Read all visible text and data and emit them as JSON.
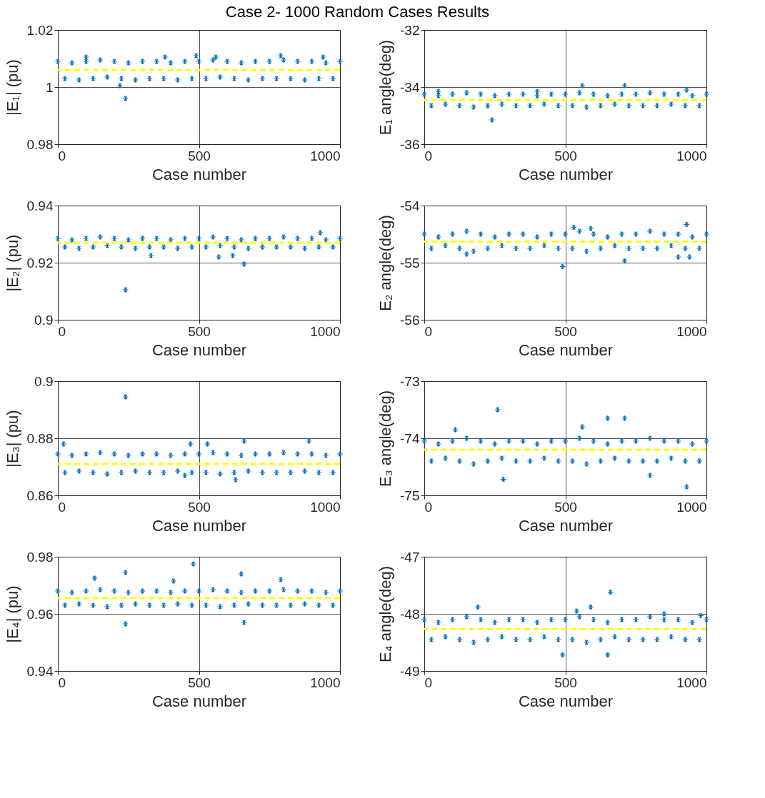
{
  "chart_data": [
    {
      "type": "scatter",
      "title": "Case 2- 1000 Random Cases Results",
      "xlabel": "Case number",
      "ylabel": "|E₁|  (pu)",
      "xlim": [
        0,
        1000
      ],
      "xticks": [
        0,
        500,
        1000
      ],
      "ylim": [
        0.98,
        1.02
      ],
      "yticks": [
        0.98,
        1,
        1.02
      ],
      "grid": true,
      "marker": "cross",
      "x": [
        0,
        25,
        50,
        75,
        100,
        125,
        150,
        175,
        200,
        225,
        250,
        275,
        300,
        325,
        350,
        375,
        400,
        425,
        450,
        475,
        500,
        525,
        550,
        575,
        600,
        625,
        650,
        675,
        700,
        725,
        750,
        775,
        800,
        825,
        850,
        875,
        900,
        925,
        950,
        975,
        1000,
        240,
        220,
        790,
        100,
        380,
        490,
        560,
        940
      ],
      "series": [
        {
          "color": "#0072bd",
          "values": [
            1.009,
            1.003,
            1.0085,
            1.0025,
            1.009,
            1.003,
            1.0095,
            1.0035,
            1.009,
            1.003,
            1.0085,
            1.0025,
            1.009,
            1.003,
            1.009,
            1.003,
            1.0085,
            1.0025,
            1.009,
            1.003,
            1.009,
            1.003,
            1.0095,
            1.0035,
            1.009,
            1.003,
            1.0085,
            1.0025,
            1.009,
            1.003,
            1.009,
            1.003,
            1.0095,
            1.003,
            1.009,
            1.0025,
            1.009,
            1.003,
            1.0085,
            1.003,
            1.009,
            0.996,
            1.0005,
            1.011,
            1.0105,
            1.0105,
            1.011,
            1.0105,
            1.0105
          ]
        }
      ],
      "ref_lines": [
        {
          "axis": "y",
          "value": 1.006,
          "color": "#ffff00",
          "line_style": "dashed"
        }
      ]
    },
    {
      "type": "scatter",
      "xlabel": "Case number",
      "ylabel": "E₁ angle(deg)",
      "xlim": [
        0,
        1000
      ],
      "xticks": [
        0,
        500,
        1000
      ],
      "ylim": [
        -36,
        -32
      ],
      "yticks": [
        -36,
        -34,
        -32
      ],
      "grid": true,
      "marker": "cross",
      "x": [
        0,
        25,
        50,
        75,
        100,
        125,
        150,
        175,
        200,
        225,
        250,
        275,
        300,
        325,
        350,
        375,
        400,
        425,
        450,
        475,
        500,
        525,
        550,
        575,
        600,
        625,
        650,
        675,
        700,
        725,
        750,
        775,
        800,
        825,
        850,
        875,
        900,
        925,
        950,
        975,
        1000,
        240,
        560,
        710,
        930,
        400,
        50
      ],
      "series": [
        {
          "color": "#0072bd",
          "values": [
            -34.25,
            -34.65,
            -34.3,
            -34.6,
            -34.25,
            -34.65,
            -34.2,
            -34.7,
            -34.25,
            -34.65,
            -34.3,
            -34.6,
            -34.25,
            -34.65,
            -34.25,
            -34.65,
            -34.3,
            -34.6,
            -34.25,
            -34.65,
            -34.25,
            -34.65,
            -34.2,
            -34.7,
            -34.25,
            -34.65,
            -34.3,
            -34.6,
            -34.25,
            -34.65,
            -34.25,
            -34.65,
            -34.2,
            -34.65,
            -34.25,
            -34.6,
            -34.25,
            -34.65,
            -34.3,
            -34.65,
            -34.25,
            -35.15,
            -33.95,
            -33.95,
            -34.1,
            -34.15,
            -34.15
          ]
        }
      ],
      "ref_lines": [
        {
          "axis": "y",
          "value": -34.45,
          "color": "#ffff00",
          "line_style": "dashed"
        }
      ]
    },
    {
      "type": "scatter",
      "xlabel": "Case number",
      "ylabel": "|E₂|  (pu)",
      "xlim": [
        0,
        1000
      ],
      "xticks": [
        0,
        500,
        1000
      ],
      "ylim": [
        0.9,
        0.94
      ],
      "yticks": [
        0.9,
        0.92,
        0.94
      ],
      "grid": true,
      "marker": "cross",
      "x": [
        0,
        25,
        50,
        75,
        100,
        125,
        150,
        175,
        200,
        225,
        250,
        275,
        300,
        325,
        350,
        375,
        400,
        425,
        450,
        475,
        500,
        525,
        550,
        575,
        600,
        625,
        650,
        675,
        700,
        725,
        750,
        775,
        800,
        825,
        850,
        875,
        900,
        925,
        950,
        975,
        1000,
        240,
        660,
        570,
        930,
        330,
        620
      ],
      "series": [
        {
          "color": "#0072bd",
          "values": [
            0.9285,
            0.9255,
            0.928,
            0.925,
            0.9285,
            0.9255,
            0.929,
            0.926,
            0.9285,
            0.9255,
            0.928,
            0.925,
            0.9285,
            0.9255,
            0.9285,
            0.9255,
            0.928,
            0.925,
            0.9285,
            0.9255,
            0.9285,
            0.9255,
            0.929,
            0.926,
            0.9285,
            0.9255,
            0.928,
            0.925,
            0.9285,
            0.9255,
            0.9285,
            0.9255,
            0.929,
            0.9255,
            0.9285,
            0.925,
            0.9285,
            0.9255,
            0.928,
            0.9255,
            0.9285,
            0.9105,
            0.9195,
            0.922,
            0.9305,
            0.9225,
            0.9225
          ]
        }
      ],
      "ref_lines": [
        {
          "axis": "y",
          "value": 0.927,
          "color": "#ffff00",
          "line_style": "dashed"
        }
      ]
    },
    {
      "type": "scatter",
      "xlabel": "Case number",
      "ylabel": "E₂ angle(deg)",
      "xlim": [
        0,
        1000
      ],
      "xticks": [
        0,
        500,
        1000
      ],
      "ylim": [
        -56,
        -54
      ],
      "yticks": [
        -56,
        -55,
        -54
      ],
      "grid": true,
      "marker": "cross",
      "x": [
        0,
        25,
        50,
        75,
        100,
        125,
        150,
        175,
        200,
        225,
        250,
        275,
        300,
        325,
        350,
        375,
        400,
        425,
        450,
        475,
        500,
        525,
        550,
        575,
        600,
        625,
        650,
        675,
        700,
        725,
        750,
        775,
        800,
        825,
        850,
        875,
        900,
        925,
        950,
        975,
        1000,
        490,
        530,
        590,
        710,
        930,
        900,
        940,
        150
      ],
      "series": [
        {
          "color": "#0072bd",
          "values": [
            -54.5,
            -54.75,
            -54.55,
            -54.7,
            -54.5,
            -54.75,
            -54.45,
            -54.8,
            -54.5,
            -54.75,
            -54.55,
            -54.7,
            -54.5,
            -54.75,
            -54.5,
            -54.75,
            -54.55,
            -54.7,
            -54.5,
            -54.75,
            -54.5,
            -54.75,
            -54.45,
            -54.8,
            -54.5,
            -54.75,
            -54.55,
            -54.7,
            -54.5,
            -54.75,
            -54.5,
            -54.75,
            -54.45,
            -54.75,
            -54.5,
            -54.7,
            -54.5,
            -54.75,
            -54.55,
            -54.75,
            -54.5,
            -55.07,
            -54.38,
            -54.4,
            -54.97,
            -54.33,
            -54.9,
            -54.9,
            -54.85
          ]
        }
      ],
      "ref_lines": [
        {
          "axis": "y",
          "value": -54.63,
          "color": "#ffff00",
          "line_style": "dashed"
        }
      ]
    },
    {
      "type": "scatter",
      "xlabel": "Case number",
      "ylabel": "|E₃|  (pu)",
      "xlim": [
        0,
        1000
      ],
      "xticks": [
        0,
        500,
        1000
      ],
      "ylim": [
        0.86,
        0.9
      ],
      "yticks": [
        0.86,
        0.88,
        0.9
      ],
      "grid": true,
      "marker": "cross",
      "x": [
        0,
        25,
        50,
        75,
        100,
        125,
        150,
        175,
        200,
        225,
        250,
        275,
        300,
        325,
        350,
        375,
        400,
        425,
        450,
        475,
        500,
        525,
        550,
        575,
        600,
        625,
        650,
        675,
        700,
        725,
        750,
        775,
        800,
        825,
        850,
        875,
        900,
        925,
        950,
        975,
        1000,
        240,
        630,
        450,
        660,
        890,
        20,
        470,
        530
      ],
      "series": [
        {
          "color": "#0072bd",
          "values": [
            0.8745,
            0.868,
            0.874,
            0.8685,
            0.8745,
            0.868,
            0.875,
            0.8675,
            0.8745,
            0.868,
            0.874,
            0.8685,
            0.8745,
            0.868,
            0.8745,
            0.868,
            0.874,
            0.8685,
            0.8745,
            0.868,
            0.8745,
            0.868,
            0.875,
            0.8675,
            0.8745,
            0.868,
            0.874,
            0.8685,
            0.8745,
            0.868,
            0.8745,
            0.868,
            0.875,
            0.868,
            0.8745,
            0.8685,
            0.8745,
            0.868,
            0.874,
            0.868,
            0.8745,
            0.8945,
            0.8655,
            0.867,
            0.879,
            0.879,
            0.878,
            0.878,
            0.878
          ]
        }
      ],
      "ref_lines": [
        {
          "axis": "y",
          "value": 0.871,
          "color": "#ffff00",
          "line_style": "dashed"
        }
      ]
    },
    {
      "type": "scatter",
      "xlabel": "Case number",
      "ylabel": "E₃ angle(deg)",
      "xlim": [
        0,
        1000
      ],
      "xticks": [
        0,
        500,
        1000
      ],
      "ylim": [
        -75,
        -73
      ],
      "yticks": [
        -75,
        -74,
        -73
      ],
      "grid": true,
      "marker": "cross",
      "x": [
        0,
        25,
        50,
        75,
        100,
        125,
        150,
        175,
        200,
        225,
        250,
        275,
        300,
        325,
        350,
        375,
        400,
        425,
        450,
        475,
        500,
        525,
        550,
        575,
        600,
        625,
        650,
        675,
        700,
        725,
        750,
        775,
        800,
        825,
        850,
        875,
        900,
        925,
        950,
        975,
        1000,
        260,
        280,
        650,
        710,
        560,
        930,
        800,
        110
      ],
      "series": [
        {
          "color": "#0072bd",
          "values": [
            -74.05,
            -74.4,
            -74.1,
            -74.35,
            -74.05,
            -74.4,
            -74.0,
            -74.45,
            -74.05,
            -74.4,
            -74.1,
            -74.35,
            -74.05,
            -74.4,
            -74.05,
            -74.4,
            -74.1,
            -74.35,
            -74.05,
            -74.4,
            -74.05,
            -74.4,
            -74.0,
            -74.45,
            -74.05,
            -74.4,
            -74.1,
            -74.35,
            -74.05,
            -74.4,
            -74.05,
            -74.4,
            -74.0,
            -74.4,
            -74.05,
            -74.35,
            -74.05,
            -74.4,
            -74.1,
            -74.4,
            -74.05,
            -73.5,
            -74.72,
            -73.65,
            -73.65,
            -73.8,
            -74.85,
            -74.65,
            -73.85
          ]
        }
      ],
      "ref_lines": [
        {
          "axis": "y",
          "value": -74.2,
          "color": "#ffff00",
          "line_style": "dashed"
        }
      ]
    },
    {
      "type": "scatter",
      "xlabel": "Case number",
      "ylabel": "|E₄|  (pu)",
      "xlim": [
        0,
        1000
      ],
      "xticks": [
        0,
        500,
        1000
      ],
      "ylim": [
        0.94,
        0.98
      ],
      "yticks": [
        0.94,
        0.96,
        0.98
      ],
      "grid": true,
      "marker": "cross",
      "x": [
        0,
        25,
        50,
        75,
        100,
        125,
        150,
        175,
        200,
        225,
        250,
        275,
        300,
        325,
        350,
        375,
        400,
        425,
        450,
        475,
        500,
        525,
        550,
        575,
        600,
        625,
        650,
        675,
        700,
        725,
        750,
        775,
        800,
        825,
        850,
        875,
        900,
        925,
        950,
        975,
        1000,
        480,
        240,
        650,
        240,
        660,
        410,
        130,
        790
      ],
      "series": [
        {
          "color": "#0072bd",
          "values": [
            0.968,
            0.963,
            0.9675,
            0.9635,
            0.968,
            0.963,
            0.9685,
            0.9625,
            0.968,
            0.963,
            0.9675,
            0.9635,
            0.968,
            0.963,
            0.968,
            0.963,
            0.9675,
            0.9635,
            0.968,
            0.963,
            0.968,
            0.963,
            0.9685,
            0.9625,
            0.968,
            0.963,
            0.9675,
            0.9635,
            0.968,
            0.963,
            0.968,
            0.963,
            0.9685,
            0.963,
            0.968,
            0.9635,
            0.968,
            0.963,
            0.9675,
            0.963,
            0.968,
            0.9775,
            0.9745,
            0.974,
            0.9565,
            0.957,
            0.9715,
            0.9725,
            0.972
          ]
        }
      ],
      "ref_lines": [
        {
          "axis": "y",
          "value": 0.9655,
          "color": "#ffff00",
          "line_style": "dashed"
        }
      ]
    },
    {
      "type": "scatter",
      "xlabel": "Case number",
      "ylabel": "E₄ angle(deg)",
      "xlim": [
        0,
        1000
      ],
      "xticks": [
        0,
        500,
        1000
      ],
      "ylim": [
        -49,
        -47
      ],
      "yticks": [
        -49,
        -48,
        -47
      ],
      "grid": true,
      "marker": "cross",
      "x": [
        0,
        25,
        50,
        75,
        100,
        125,
        150,
        175,
        200,
        225,
        250,
        275,
        300,
        325,
        350,
        375,
        400,
        425,
        450,
        475,
        500,
        525,
        550,
        575,
        600,
        625,
        650,
        675,
        700,
        725,
        750,
        775,
        800,
        825,
        850,
        875,
        900,
        925,
        950,
        975,
        1000,
        660,
        590,
        190,
        540,
        490,
        650,
        850,
        980
      ],
      "series": [
        {
          "color": "#0072bd",
          "values": [
            -48.1,
            -48.45,
            -48.15,
            -48.4,
            -48.1,
            -48.45,
            -48.05,
            -48.5,
            -48.1,
            -48.45,
            -48.15,
            -48.4,
            -48.1,
            -48.45,
            -48.1,
            -48.45,
            -48.15,
            -48.4,
            -48.1,
            -48.45,
            -48.1,
            -48.45,
            -48.05,
            -48.5,
            -48.1,
            -48.45,
            -48.15,
            -48.4,
            -48.1,
            -48.45,
            -48.1,
            -48.45,
            -48.05,
            -48.45,
            -48.1,
            -48.4,
            -48.1,
            -48.45,
            -48.15,
            -48.45,
            -48.1,
            -47.62,
            -47.88,
            -47.88,
            -47.95,
            -48.72,
            -48.72,
            -48.0,
            -48.03
          ]
        }
      ],
      "ref_lines": [
        {
          "axis": "y",
          "value": -48.27,
          "color": "#ffff00",
          "line_style": "dashed"
        }
      ]
    }
  ]
}
